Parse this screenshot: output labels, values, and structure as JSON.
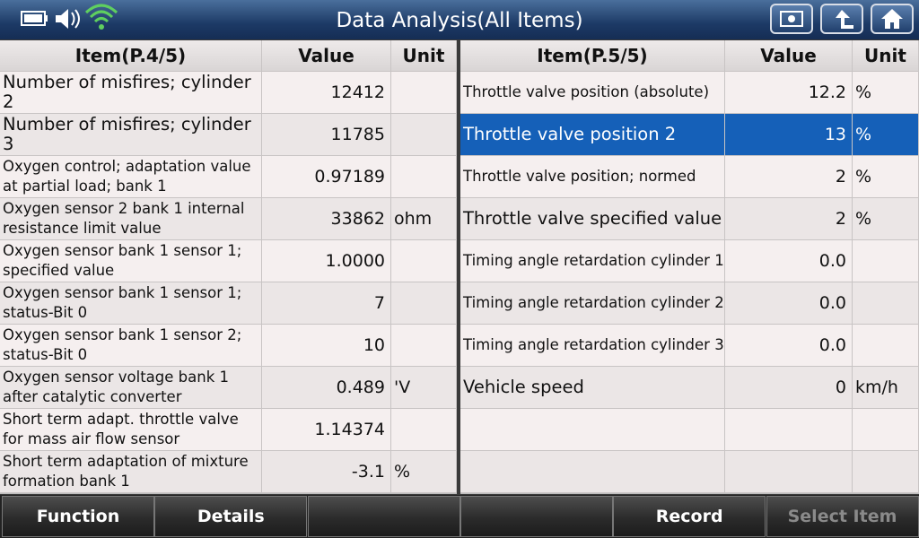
{
  "header": {
    "title": "Data Analysis(All Items)"
  },
  "left_table": {
    "columns": [
      "Item(P.4/5)",
      "Value",
      "Unit"
    ],
    "rows": [
      {
        "item": "Number of misfires; cylinder 2",
        "value": "12412"
      },
      {
        "item": "Number of misfires; cylinder 3",
        "value": "11785"
      },
      {
        "item": "Oxygen control; adaptation value at partial load; bank 1",
        "value": "0.97189"
      },
      {
        "item": "Oxygen sensor 2 bank 1 internal resistance limit value",
        "value": "33862",
        "unit": "ohm"
      },
      {
        "item": "Oxygen sensor bank 1 sensor 1; specified value",
        "value": "1.0000"
      },
      {
        "item": "Oxygen sensor bank 1 sensor 1; status-Bit 0",
        "value": "7"
      },
      {
        "item": "Oxygen sensor bank 1 sensor 2; status-Bit 0",
        "value": "10"
      },
      {
        "item": "Oxygen sensor voltage bank 1 after catalytic converter",
        "value": "0.489",
        "unit": "'V"
      },
      {
        "item": "Short term adapt. throttle valve for mass air flow sensor",
        "value": "1.14374"
      },
      {
        "item": "Short term adaptation of mixture formation bank 1",
        "value": "-3.1",
        "unit": "%"
      }
    ]
  },
  "right_table": {
    "columns": [
      "Item(P.5/5)",
      "Value",
      "Unit"
    ],
    "rows": [
      {
        "item": "Throttle valve position (absolute)",
        "value": "12.2",
        "unit": "%"
      },
      {
        "item": "Throttle valve position 2",
        "value": "13",
        "unit": "%",
        "selected": true
      },
      {
        "item": "Throttle valve position; normed",
        "value": "2",
        "unit": "%"
      },
      {
        "item": "Throttle valve specified value",
        "value": "2",
        "unit": "%"
      },
      {
        "item": "Timing angle retardation cylinder 1",
        "value": "0.0"
      },
      {
        "item": "Timing angle retardation cylinder 2",
        "value": "0.0"
      },
      {
        "item": "Timing angle retardation cylinder 3",
        "value": "0.0"
      },
      {
        "item": "Vehicle speed",
        "value": "0",
        "unit": "km/h"
      }
    ]
  },
  "buttons": [
    {
      "label": "Function"
    },
    {
      "label": "Details"
    },
    {},
    {},
    {
      "label": "Record"
    },
    {
      "label": "Select Item",
      "disabled": true
    }
  ]
}
